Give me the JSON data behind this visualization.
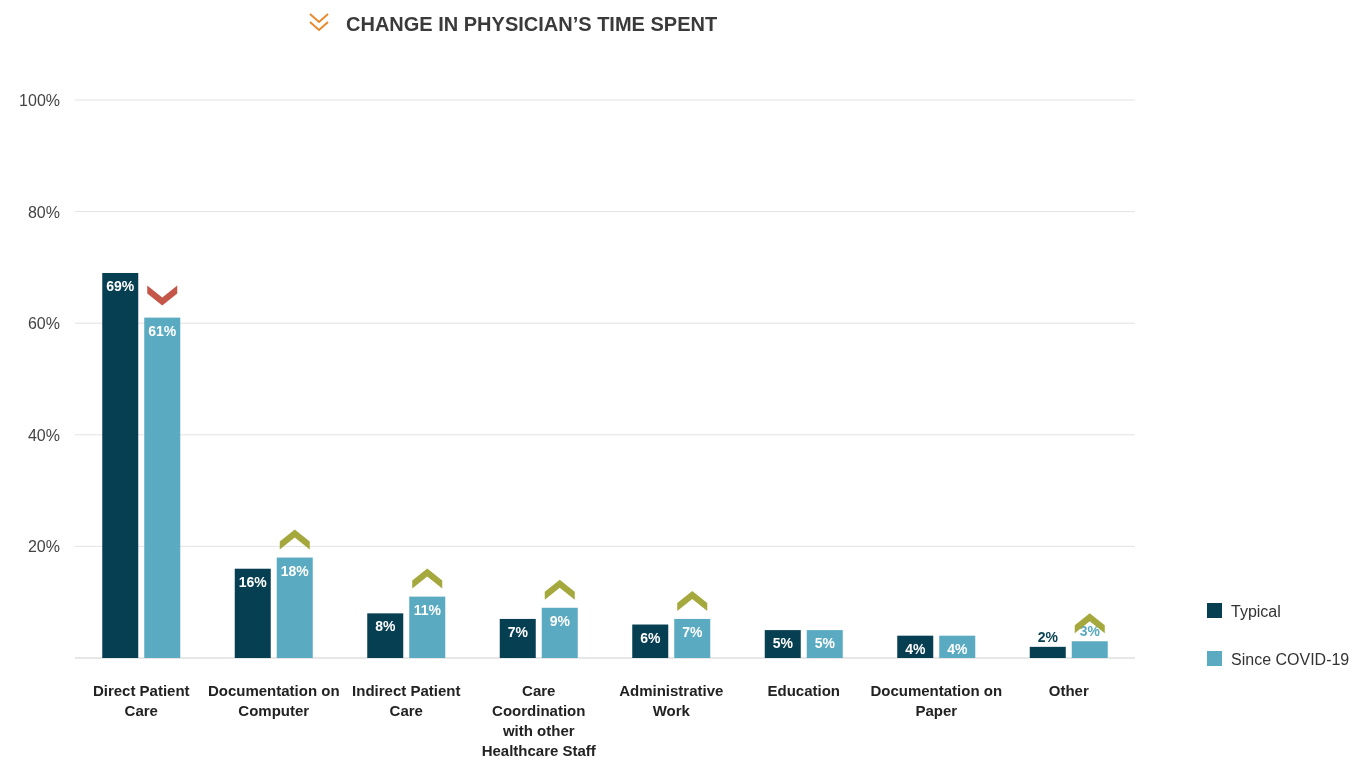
{
  "chart_data": {
    "type": "bar",
    "title": "CHANGE IN PHYSICIAN’S TIME SPENT",
    "categories": [
      "Direct Patient Care",
      "Documentation on Computer",
      "Indirect Patient Care",
      "Care Coordination with other Healthcare Staff",
      "Administrative Work",
      "Education",
      "Documentation on Paper",
      "Other"
    ],
    "series": [
      {
        "name": "Typical",
        "color": "#063f52",
        "values": [
          69,
          16,
          8,
          7,
          6,
          5,
          4,
          2
        ],
        "value_labels": [
          "69%",
          "16%",
          "8%",
          "7%",
          "6%",
          "5%",
          "4%",
          "2%"
        ]
      },
      {
        "name": "Since COVID-19",
        "color": "#5aaac1",
        "values": [
          61,
          18,
          11,
          9,
          7,
          5,
          4,
          3
        ],
        "value_labels": [
          "61%",
          "18%",
          "11%",
          "9%",
          "7%",
          "5%",
          "4%",
          "3%"
        ]
      }
    ],
    "ylim": [
      0,
      100
    ],
    "yticks": [
      {
        "value": 0,
        "label": null
      },
      {
        "value": 20,
        "label": "20%"
      },
      {
        "value": 40,
        "label": "40%"
      },
      {
        "value": 60,
        "label": "60%"
      },
      {
        "value": 80,
        "label": "80%"
      },
      {
        "value": 100,
        "label": "100%"
      }
    ],
    "grid": "y",
    "legend": "bottom right"
  }
}
